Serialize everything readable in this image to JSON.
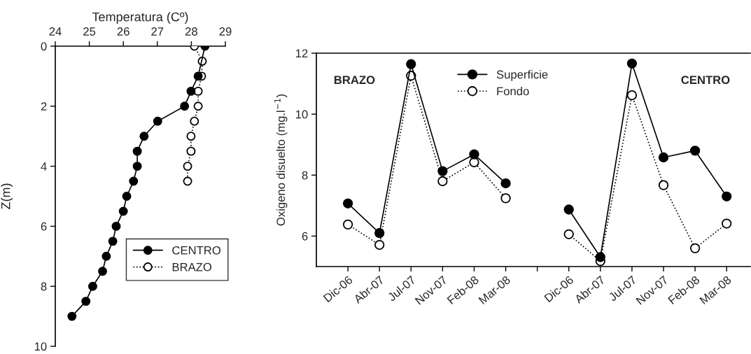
{
  "chart_data": [
    {
      "type": "line",
      "xlabel": "Temperatura (Cº)",
      "ylabel": "Z(m)",
      "xlim": [
        24,
        29
      ],
      "xticks": [
        24,
        25,
        26,
        27,
        28,
        29
      ],
      "ylim": [
        10,
        0
      ],
      "yticks": [
        0,
        2,
        4,
        6,
        8,
        10
      ],
      "legend": "bottom right",
      "grid": false,
      "marker": "circle",
      "series": [
        {
          "name": "CENTRO",
          "color": "#000000",
          "line_style": "solid",
          "x": [
            28.4,
            28.2,
            27.99,
            27.8,
            27.01,
            26.61,
            26.41,
            26.41,
            26.3,
            26.1,
            26.0,
            25.79,
            25.69,
            25.5,
            25.39,
            25.1,
            24.9,
            24.49
          ],
          "values": [
            0,
            1,
            1.5,
            2,
            2.5,
            3,
            3.5,
            4,
            4.5,
            5,
            5.5,
            6,
            6.5,
            7,
            7.5,
            8,
            8.5,
            9
          ]
        },
        {
          "name": "BRAZO",
          "color": "#000000",
          "line_style": "dotted",
          "x": [
            28.09,
            28.32,
            28.3,
            28.2,
            28.2,
            28.09,
            27.99,
            27.99,
            27.89,
            27.89
          ],
          "values": [
            0,
            0.5,
            1,
            1.5,
            2,
            2.5,
            3,
            3.5,
            4,
            4.5
          ]
        }
      ]
    },
    {
      "type": "line",
      "ylabel": "Oxigeno disuelto (mg.l$^{−1}$)",
      "categories": [
        "Dic-06",
        "Abr-07",
        "Jul-07",
        "Nov-07",
        "Feb-08",
        "Mar-08",
        null,
        "Dic-06",
        "Abr-07",
        "Jul-07",
        "Nov-07",
        "Feb-08",
        "Mar-08"
      ],
      "ylim": [
        5,
        12
      ],
      "yticks": [
        6,
        8,
        10,
        12
      ],
      "legend": "top",
      "grid": false,
      "marker": "circle",
      "annotations": [
        "BRAZO",
        "CENTRO"
      ],
      "series": [
        {
          "name": "Superficie",
          "color": "#000000",
          "line_style": "solid",
          "values": [
            7.07,
            6.1,
            11.64,
            8.13,
            8.68,
            7.73,
            null,
            6.87,
            5.31,
            11.66,
            8.58,
            8.8,
            7.3
          ]
        },
        {
          "name": "Fondo",
          "color": "#000000",
          "line_style": "dotted",
          "values": [
            6.38,
            5.71,
            11.26,
            7.8,
            8.42,
            7.24,
            null,
            6.06,
            5.18,
            10.62,
            7.67,
            5.6,
            6.41
          ]
        }
      ]
    }
  ]
}
